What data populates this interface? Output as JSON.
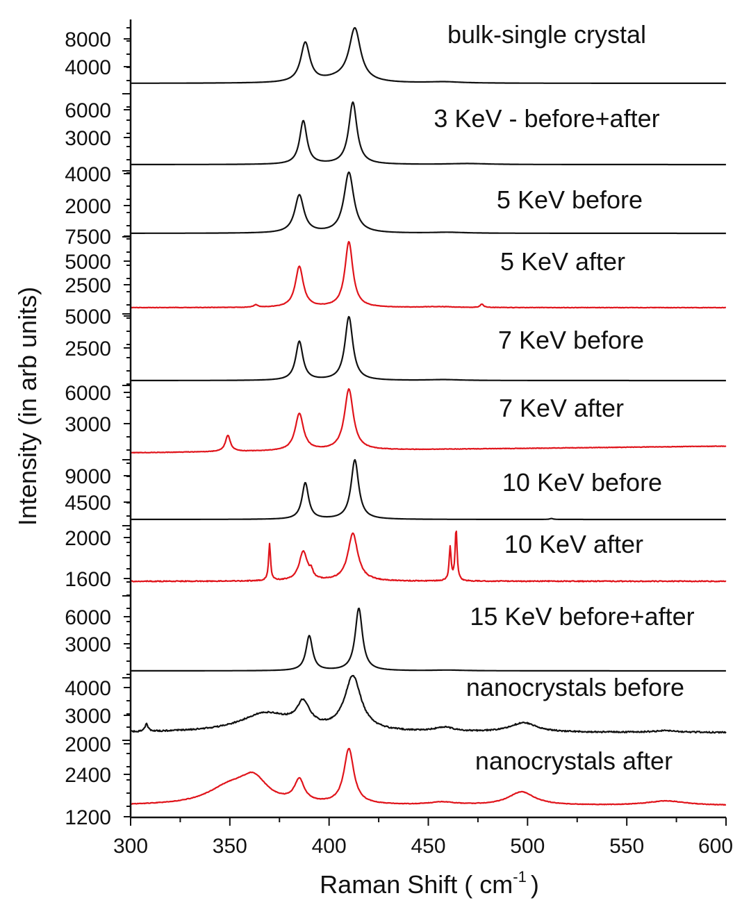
{
  "chart_data": {
    "type": "line",
    "xlabel": "Raman Shift ( cm",
    "xlabel_sup": "-1",
    "xlabel_close": ")",
    "ylabel": "Intensity (in arb units)",
    "xlim": [
      300,
      600
    ],
    "x_ticks": [
      300,
      350,
      400,
      450,
      500,
      550,
      600
    ],
    "colors": {
      "black": "#111111",
      "red": "#e0141b"
    },
    "series": [
      {
        "name": "bulk-single crystal",
        "color": "black",
        "baseline": 500,
        "noise": 0,
        "y_ticks": [
          {
            "label": "8000",
            "value": 8000
          },
          {
            "label": "4000",
            "value": 4000
          }
        ],
        "peaks": [
          {
            "x": 388,
            "h": 6500,
            "w": 2.8
          },
          {
            "x": 413,
            "h": 8700,
            "w": 3.5
          },
          {
            "x": 405,
            "h": 600,
            "w": 10
          },
          {
            "x": 458,
            "h": 200,
            "w": 10
          }
        ]
      },
      {
        "name": "3 KeV - before+after",
        "color": "black",
        "baseline": 0,
        "noise": 0,
        "y_ticks": [
          {
            "label": "6000",
            "value": 6000
          },
          {
            "label": "3000",
            "value": 3000
          }
        ],
        "peaks": [
          {
            "x": 387,
            "h": 5600,
            "w": 2.2
          },
          {
            "x": 412,
            "h": 8000,
            "w": 2.5
          },
          {
            "x": 470,
            "h": 120,
            "w": 12
          }
        ]
      },
      {
        "name": "5 KeV before",
        "color": "black",
        "baseline": 0,
        "noise": 0,
        "y_ticks": [
          {
            "label": "4000",
            "value": 4000
          },
          {
            "label": "2000",
            "value": 2000
          }
        ],
        "peaks": [
          {
            "x": 385,
            "h": 4300,
            "w": 2.8
          },
          {
            "x": 410,
            "h": 6900,
            "w": 3.0
          },
          {
            "x": 460,
            "h": 100,
            "w": 10
          }
        ]
      },
      {
        "name": "5 KeV after",
        "color": "red",
        "baseline": 200,
        "noise": 60,
        "y_ticks": [
          {
            "label": "7500",
            "value": 7500
          },
          {
            "label": "5000",
            "value": 5000
          },
          {
            "label": "2500",
            "value": 2500
          }
        ],
        "peaks": [
          {
            "x": 385,
            "h": 5800,
            "w": 2.4
          },
          {
            "x": 410,
            "h": 9300,
            "w": 2.4
          },
          {
            "x": 363,
            "h": 350,
            "w": 1.2
          },
          {
            "x": 477,
            "h": 500,
            "w": 1.0
          },
          {
            "x": 455,
            "h": 120,
            "w": 10
          }
        ]
      },
      {
        "name": "7 KeV before",
        "color": "black",
        "baseline": 300,
        "noise": 0,
        "y_ticks": [
          {
            "label": "5000",
            "value": 5000
          },
          {
            "label": "2500",
            "value": 2500
          }
        ],
        "peaks": [
          {
            "x": 385,
            "h": 4700,
            "w": 2.2
          },
          {
            "x": 410,
            "h": 7700,
            "w": 2.4
          },
          {
            "x": 458,
            "h": 100,
            "w": 10
          }
        ]
      },
      {
        "name": "7 KeV after",
        "color": "red",
        "baseline": 200,
        "noise": 50,
        "slope": 700,
        "y_ticks": [
          {
            "label": "6000",
            "value": 6000
          },
          {
            "label": "3000",
            "value": 3000
          }
        ],
        "peaks": [
          {
            "x": 349,
            "h": 1700,
            "w": 1.5
          },
          {
            "x": 385,
            "h": 3900,
            "w": 2.5
          },
          {
            "x": 410,
            "h": 6400,
            "w": 2.7
          }
        ]
      },
      {
        "name": "10 KeV before",
        "color": "black",
        "baseline": 1000,
        "noise": 0,
        "y_ticks": [
          {
            "label": "9000",
            "value": 9000
          },
          {
            "label": "4500",
            "value": 4500
          }
        ],
        "peaks": [
          {
            "x": 388,
            "h": 6000,
            "w": 2.0
          },
          {
            "x": 413,
            "h": 9800,
            "w": 2.3
          },
          {
            "x": 512,
            "h": 150,
            "w": 1
          }
        ]
      },
      {
        "name": "10 KeV after",
        "color": "red",
        "baseline": 1600,
        "noise": 5,
        "y_ticks": [
          {
            "label": "2000",
            "value": 2000
          },
          {
            "label": "1600",
            "value": 1600
          }
        ],
        "peaks": [
          {
            "x": 387,
            "h": 160,
            "w": 2.5
          },
          {
            "x": 412,
            "h": 260,
            "w": 3.0
          },
          {
            "x": 370,
            "h": 200,
            "w": 0.6
          },
          {
            "x": 391,
            "h": 35,
            "w": 1.0
          },
          {
            "x": 461,
            "h": 180,
            "w": 0.6
          },
          {
            "x": 464,
            "h": 280,
            "w": 0.6
          }
        ]
      },
      {
        "name": "15 KeV before+after",
        "color": "black",
        "baseline": 200,
        "noise": 0,
        "y_ticks": [
          {
            "label": "6000",
            "value": 6000
          },
          {
            "label": "3000",
            "value": 3000
          }
        ],
        "peaks": [
          {
            "x": 390,
            "h": 4800,
            "w": 2.0
          },
          {
            "x": 415,
            "h": 8600,
            "w": 2.2
          },
          {
            "x": 460,
            "h": 90,
            "w": 10
          }
        ]
      },
      {
        "name": "nanocrystals before",
        "color": "black",
        "baseline": 2700,
        "noise": 40,
        "y_ticks": [
          {
            "label": "4000",
            "value": 4000
          },
          {
            "label": "3000",
            "value": 3000
          }
        ],
        "peaks": [
          {
            "x": 368,
            "h": 550,
            "w": 16
          },
          {
            "x": 387,
            "h": 700,
            "w": 4
          },
          {
            "x": 412,
            "h": 1600,
            "w": 5
          },
          {
            "x": 308,
            "h": 250,
            "w": 0.8
          },
          {
            "x": 458,
            "h": 120,
            "w": 6
          },
          {
            "x": 498,
            "h": 280,
            "w": 8
          },
          {
            "x": 570,
            "h": 50,
            "w": 8
          }
        ]
      },
      {
        "name": "nanocrystals after",
        "color": "red",
        "baseline": 1600,
        "noise": 25,
        "y_ticks": [
          {
            "label": "2000",
            "value": 2000
          },
          {
            "label": "2400",
            "value": 2400
          },
          {
            "label": "1200",
            "value": 1200
          }
        ],
        "peaks": [
          {
            "x": 350,
            "h": 800,
            "w": 14
          },
          {
            "x": 362,
            "h": 1000,
            "w": 8
          },
          {
            "x": 385,
            "h": 1000,
            "w": 3
          },
          {
            "x": 410,
            "h": 2500,
            "w": 3
          },
          {
            "x": 457,
            "h": 120,
            "w": 8
          },
          {
            "x": 497,
            "h": 600,
            "w": 8
          },
          {
            "x": 570,
            "h": 200,
            "w": 12
          }
        ]
      }
    ]
  }
}
